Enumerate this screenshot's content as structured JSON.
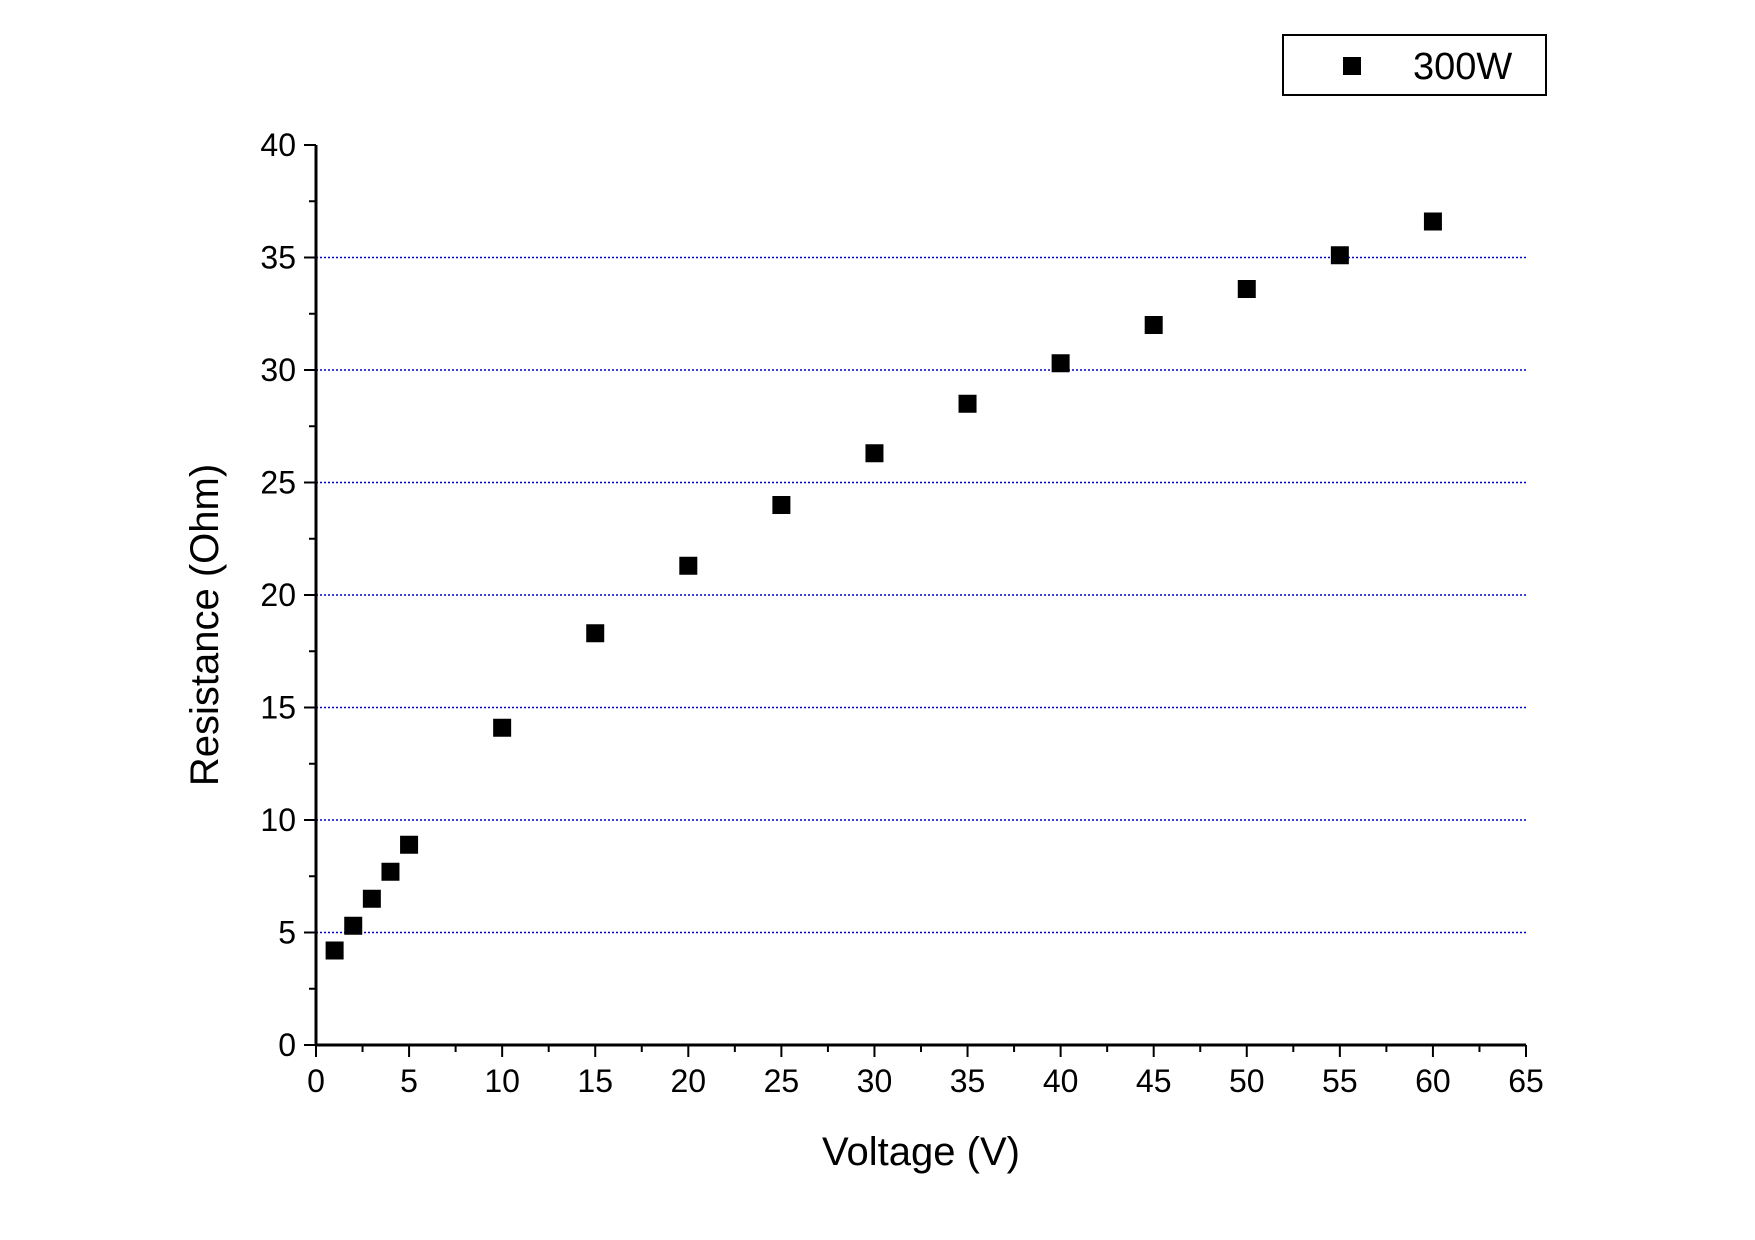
{
  "chart_data": {
    "type": "scatter",
    "title": "",
    "xlabel": "Voltage (V)",
    "ylabel": "Resistance (Ohm)",
    "xlim": [
      0,
      65
    ],
    "ylim": [
      0,
      40
    ],
    "x_ticks": [
      0,
      5,
      10,
      15,
      20,
      25,
      30,
      35,
      40,
      45,
      50,
      55,
      60,
      65
    ],
    "y_ticks": [
      0,
      5,
      10,
      15,
      20,
      25,
      30,
      35,
      40
    ],
    "x_tick_labels": [
      "0",
      "5",
      "10",
      "15",
      "20",
      "25",
      "30",
      "35",
      "40",
      "45",
      "50",
      "55",
      "60",
      "65"
    ],
    "y_tick_labels": [
      "0",
      "5",
      "10",
      "15",
      "20",
      "25",
      "30",
      "35",
      "40"
    ],
    "grid": "horizontal dotted lines at y = 5 to 35",
    "grid_color": "#0000cc",
    "legend_position": "top-right",
    "series": [
      {
        "name": "300W",
        "marker": "square",
        "color": "#000000",
        "x": [
          1,
          2,
          3,
          4,
          5,
          10,
          15,
          20,
          25,
          30,
          35,
          40,
          45,
          50,
          55,
          60
        ],
        "y": [
          4.2,
          5.3,
          6.5,
          7.7,
          8.9,
          14.1,
          18.3,
          21.3,
          24.0,
          26.3,
          28.5,
          30.3,
          32.0,
          33.6,
          35.1,
          36.6
        ]
      }
    ]
  }
}
